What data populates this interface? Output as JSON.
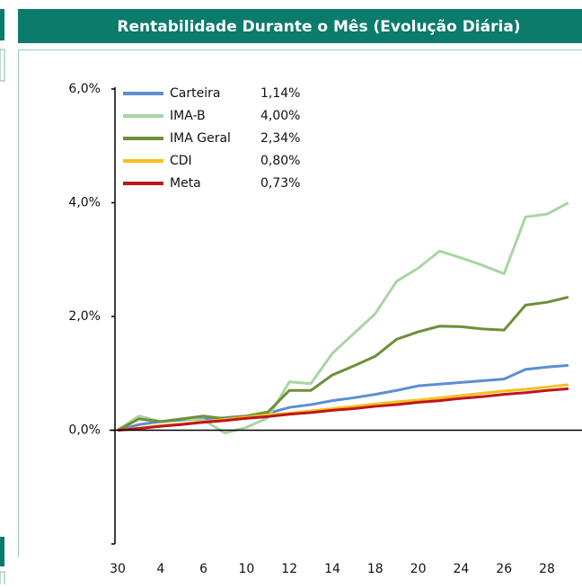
{
  "chart_data": {
    "type": "line",
    "title": "Rentabilidade Durante o Mês (Evolução Diária)",
    "categories": [
      "30",
      null,
      "4",
      null,
      "6",
      null,
      "10",
      null,
      "12",
      null,
      "14",
      null,
      "18",
      null,
      "20",
      null,
      "24",
      null,
      "26",
      null,
      "28",
      null
    ],
    "series": [
      {
        "name": "Carteira",
        "label": "1,14%",
        "color": "#5b8fd0",
        "values": [
          0,
          0.1,
          0.15,
          0.18,
          0.2,
          0.22,
          0.25,
          0.3,
          0.4,
          0.45,
          0.52,
          0.57,
          0.63,
          0.7,
          0.78,
          0.81,
          0.84,
          0.87,
          0.9,
          1.07,
          1.11,
          1.14
        ]
      },
      {
        "name": "IMA-B",
        "label": "4,00%",
        "color": "#a8d5a4",
        "values": [
          0,
          0.25,
          0.15,
          0.2,
          0.18,
          -0.05,
          0.05,
          0.22,
          0.85,
          0.82,
          1.35,
          1.7,
          2.05,
          2.62,
          2.85,
          3.15,
          3.03,
          2.9,
          2.75,
          3.75,
          3.8,
          4.0
        ]
      },
      {
        "name": "IMA Geral",
        "label": "2,34%",
        "color": "#6f8f3a",
        "values": [
          0,
          0.2,
          0.15,
          0.2,
          0.25,
          0.2,
          0.25,
          0.32,
          0.7,
          0.7,
          0.97,
          1.13,
          1.3,
          1.6,
          1.73,
          1.83,
          1.82,
          1.78,
          1.76,
          2.2,
          2.25,
          2.34
        ]
      },
      {
        "name": "CDI",
        "label": "0,80%",
        "color": "#f5c020",
        "values": [
          0,
          0.04,
          0.08,
          0.11,
          0.15,
          0.19,
          0.23,
          0.27,
          0.3,
          0.34,
          0.38,
          0.42,
          0.46,
          0.5,
          0.53,
          0.57,
          0.61,
          0.65,
          0.69,
          0.72,
          0.76,
          0.8
        ]
      },
      {
        "name": "Meta",
        "label": "0,73%",
        "color": "#c0141c",
        "values": [
          0,
          0.03,
          0.07,
          0.1,
          0.14,
          0.17,
          0.21,
          0.24,
          0.28,
          0.31,
          0.35,
          0.38,
          0.42,
          0.45,
          0.49,
          0.52,
          0.56,
          0.59,
          0.63,
          0.66,
          0.7,
          0.73
        ]
      }
    ],
    "ylim": [
      -2,
      6
    ],
    "yticks": [
      {
        "value": 0,
        "label": "0,0%"
      },
      {
        "value": 2,
        "label": "2,0%"
      },
      {
        "value": 4,
        "label": "4,0%"
      },
      {
        "value": 6,
        "label": "6,0%"
      }
    ],
    "legend": "upper left"
  }
}
